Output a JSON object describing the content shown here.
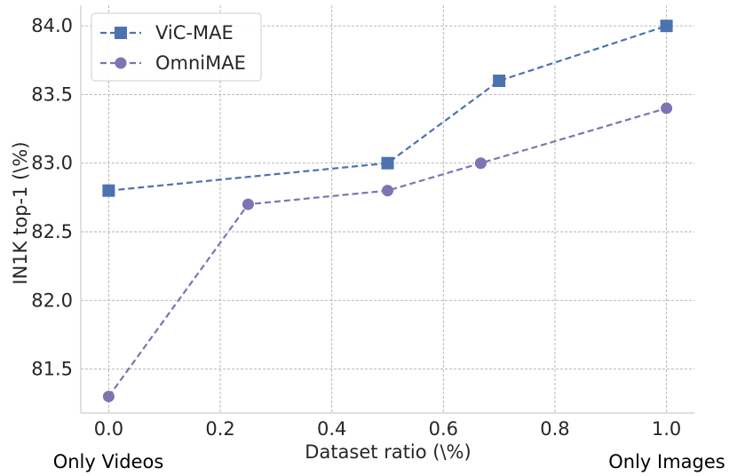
{
  "chart_data": {
    "type": "line",
    "xlabel": "Dataset ratio (\\%)",
    "ylabel": "IN1K top-1 (\\%)",
    "xlim": [
      -0.05,
      1.05
    ],
    "ylim": [
      81.18,
      84.15
    ],
    "xticks": [
      0.0,
      0.2,
      0.4,
      0.6,
      0.8,
      1.0
    ],
    "xtick_labels": [
      "0.0",
      "0.2",
      "0.4",
      "0.6",
      "0.8",
      "1.0"
    ],
    "yticks": [
      81.5,
      82.0,
      82.5,
      83.0,
      83.5,
      84.0
    ],
    "ytick_labels": [
      "81.5",
      "82.0",
      "82.5",
      "83.0",
      "83.5",
      "84.0"
    ],
    "grid": true,
    "legend_position": "top-left",
    "series": [
      {
        "name": "ViC-MAE",
        "color": "#4c72b0",
        "marker": "square",
        "x": [
          0.0,
          0.5,
          0.7,
          1.0
        ],
        "y": [
          82.8,
          83.0,
          83.6,
          84.0
        ]
      },
      {
        "name": "OmniMAE",
        "color": "#8172b3",
        "marker": "circle",
        "x": [
          0.0,
          0.25,
          0.5,
          0.667,
          1.0
        ],
        "y": [
          81.3,
          82.7,
          82.8,
          83.0,
          83.4
        ]
      }
    ],
    "annotations": {
      "left": "Only Videos",
      "right": "Only Images"
    }
  }
}
